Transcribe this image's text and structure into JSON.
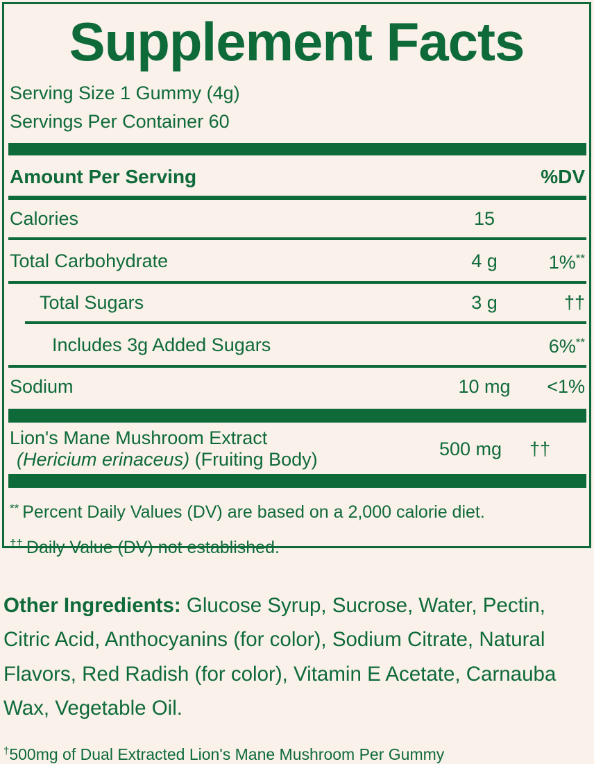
{
  "theme": {
    "green": "#0E6A39",
    "background": "#FAF1EA"
  },
  "panel": {
    "title": "Supplement Facts",
    "serving_size": "Serving Size 1 Gummy (4g)",
    "servings_per_container": "Servings Per Container 60",
    "header": {
      "amount_label": "Amount Per Serving",
      "dv_label": "%DV"
    },
    "rows": [
      {
        "name": "Calories",
        "amount": "15",
        "dv": ""
      },
      {
        "name": "Total Carbohydrate",
        "amount": "4 g",
        "dv": "1%",
        "dv_sup": "**"
      },
      {
        "name": "Total Sugars",
        "amount": "3 g",
        "dv": "††"
      },
      {
        "name": "Includes 3g Added Sugars",
        "amount": "",
        "dv": "6%",
        "dv_sup": "**"
      },
      {
        "name": "Sodium",
        "amount": "10 mg",
        "dv": "<1%"
      }
    ],
    "botanical": {
      "name": "Lion's Mane Mushroom Extract",
      "latin": "(Hericium erinaceus)",
      "suffix": " (Fruiting Body)",
      "amount": "500 mg",
      "dv": "††"
    },
    "footnotes": [
      {
        "sup": "**",
        "text": "Percent Daily Values (DV) are based on a 2,000 calorie diet."
      },
      {
        "sup": "††",
        "text": "Daily Value (DV) not established."
      }
    ]
  },
  "other_ingredients": {
    "label": "Other Ingredients:",
    "text": "Glucose Syrup, Sucrose, Water, Pectin, Citric Acid, Anthocyanins (for color), Sodium Citrate, Natural Flavors, Red Radish (for color), Vitamin E Acetate, Carnauba Wax, Vegetable Oil."
  },
  "dagger_note": {
    "sup": "†",
    "text": "500mg of Dual Extracted Lion's Mane Mushroom Per Gummy"
  }
}
